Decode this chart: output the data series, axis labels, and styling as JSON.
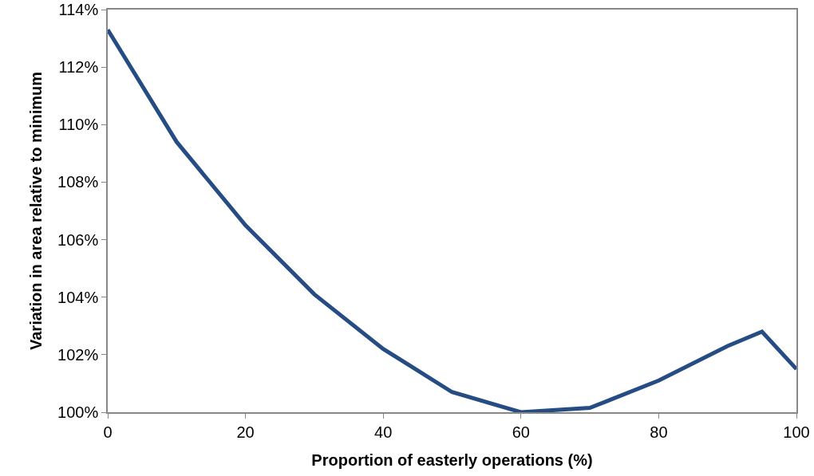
{
  "chart_data": {
    "type": "line",
    "xlabel": "Proportion of easterly operations (%)",
    "ylabel": "Variation in area relative to minimum",
    "x": [
      0,
      10,
      20,
      30,
      40,
      50,
      60,
      70,
      80,
      90,
      95,
      100
    ],
    "series": [
      {
        "color": "#264c84",
        "values": [
          113.3,
          109.4,
          106.5,
          104.1,
          102.2,
          100.7,
          100.0,
          100.15,
          101.1,
          102.3,
          102.8,
          101.5
        ]
      }
    ],
    "xlim": [
      0,
      100
    ],
    "xticks": [
      0,
      20,
      40,
      60,
      80,
      100
    ],
    "ylim": [
      100,
      114
    ],
    "yticks": [
      {
        "value": 100,
        "label": "100%"
      },
      {
        "value": 102,
        "label": "102%"
      },
      {
        "value": 104,
        "label": "104%"
      },
      {
        "value": 106,
        "label": "106%"
      },
      {
        "value": 108,
        "label": "108%"
      },
      {
        "value": 110,
        "label": "110%"
      },
      {
        "value": 112,
        "label": "112%"
      },
      {
        "value": 114,
        "label": "114%"
      }
    ],
    "grid": false,
    "marker": "none",
    "line_style": "solid"
  }
}
